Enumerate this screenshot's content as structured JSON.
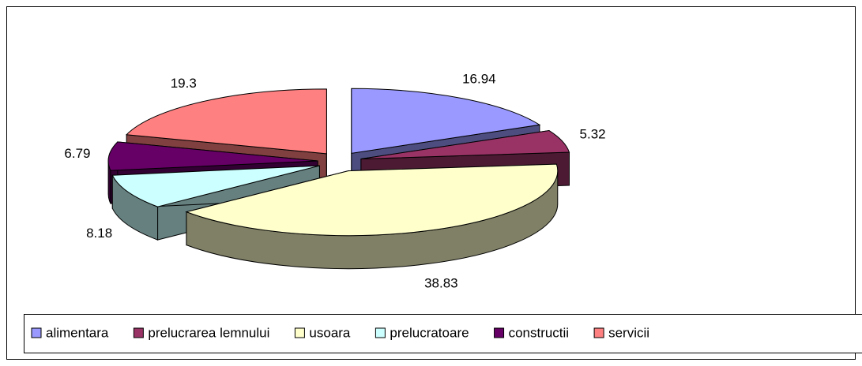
{
  "chart_data": {
    "type": "pie",
    "categories": [
      "alimentara",
      "prelucrarea lemnului",
      "usoara",
      "prelucratoare",
      "constructii",
      "servicii"
    ],
    "values": [
      16.94,
      5.32,
      38.83,
      8.18,
      6.79,
      19.3
    ],
    "colors": [
      "#9999ff",
      "#993366",
      "#ffffcc",
      "#ccffff",
      "#660066",
      "#ff8080"
    ],
    "legend": "bottom",
    "style": "3d-exploded"
  }
}
